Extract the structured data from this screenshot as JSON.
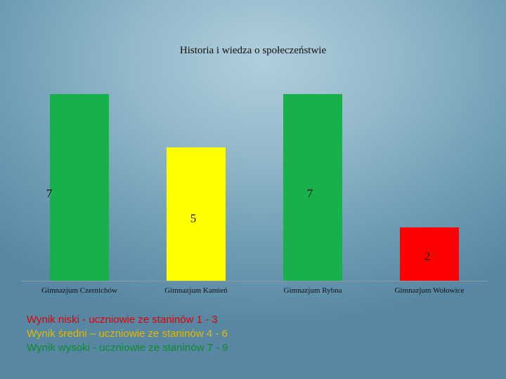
{
  "chart_data": {
    "type": "bar",
    "title": "Historia i wiedza o społeczeństwie",
    "categories": [
      "Gimnazjum Czernichów",
      "Gimnazjum Kamień",
      "Gimnazjum Rybna",
      "Gimnazjum Wołowice"
    ],
    "values": [
      7,
      5,
      7,
      2
    ],
    "colors": [
      "#18b04a",
      "#ffff00",
      "#18b04a",
      "#ff0000"
    ],
    "xlabel": "",
    "ylabel": "",
    "ylim": [
      0,
      7
    ],
    "grid": false,
    "legend_position": "bottom-left"
  },
  "legend": {
    "items": [
      {
        "text": "Wynik niski - uczniowie ze staninów 1 - 3",
        "color": "#e00000"
      },
      {
        "text": "Wynik średni – uczniowie ze staninów 4 - 6",
        "color": "#e6b800"
      },
      {
        "text": "Wynik wysoki - uczniowie ze staninów 7 - 9",
        "color": "#0e8a2e"
      }
    ]
  }
}
